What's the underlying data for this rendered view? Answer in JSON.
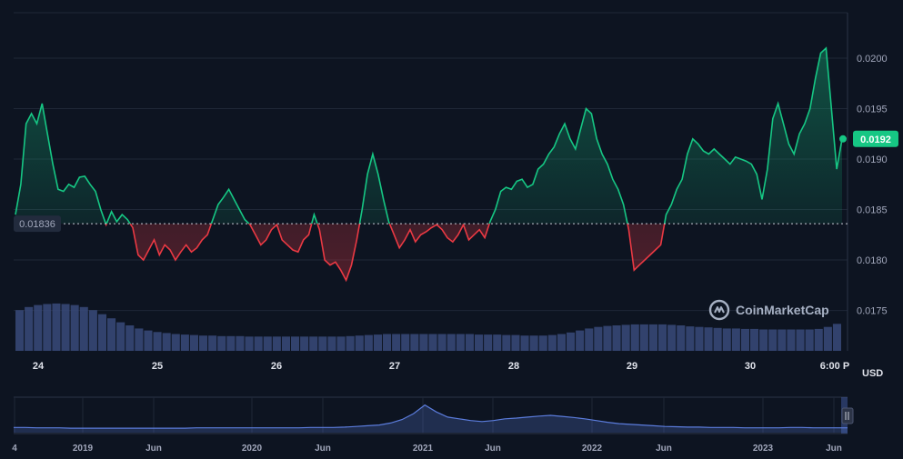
{
  "chart_data": {
    "type": "line",
    "title": "",
    "xlabel": "",
    "ylabel": "",
    "y_unit": "USD",
    "ylim": [
      0.0171,
      0.02045
    ],
    "y_ticks": [
      0.0175,
      0.018,
      0.0185,
      0.019,
      0.0195,
      0.02
    ],
    "y_tick_labels": [
      "0.0175",
      "0.0180",
      "0.0185",
      "0.0190",
      "0.0195",
      "0.0200"
    ],
    "x_tick_labels": [
      "24",
      "25",
      "26",
      "27",
      "28",
      "29",
      "30",
      "6:00 P"
    ],
    "baseline_value": 0.01836,
    "baseline_label": "0.01836",
    "current_value": 0.0192,
    "current_label": "0.0192",
    "colors": {
      "up": "#16c784",
      "down": "#ea3943",
      "background": "#0d1421",
      "volume": "#3a4a7a",
      "navigator": "#5b7cdc"
    },
    "series": [
      {
        "x_start": "23.75",
        "x_end": "30.85",
        "values": [
          0.01845,
          0.01875,
          0.01935,
          0.01945,
          0.01935,
          0.01955,
          0.01925,
          0.01895,
          0.0187,
          0.01868,
          0.01875,
          0.01872,
          0.01882,
          0.01883,
          0.01875,
          0.01868,
          0.0185,
          0.01835,
          0.01848,
          0.01838,
          0.01845,
          0.0184,
          0.01832,
          0.01805,
          0.018,
          0.0181,
          0.0182,
          0.01805,
          0.01815,
          0.0181,
          0.018,
          0.01808,
          0.01815,
          0.01808,
          0.01812,
          0.0182,
          0.01825,
          0.0184,
          0.01855,
          0.01862,
          0.0187,
          0.0186,
          0.0185,
          0.0184,
          0.01835,
          0.01825,
          0.01815,
          0.0182,
          0.0183,
          0.01835,
          0.0182,
          0.01815,
          0.0181,
          0.01808,
          0.0182,
          0.01825,
          0.01845,
          0.0183,
          0.018,
          0.01795,
          0.01798,
          0.0179,
          0.0178,
          0.01795,
          0.0182,
          0.0185,
          0.01885,
          0.01905,
          0.01885,
          0.0186,
          0.01838,
          0.01825,
          0.01812,
          0.0182,
          0.0183,
          0.01818,
          0.01825,
          0.01828,
          0.01832,
          0.01835,
          0.0183,
          0.01822,
          0.01818,
          0.01825,
          0.01835,
          0.0182,
          0.01825,
          0.0183,
          0.01822,
          0.01838,
          0.0185,
          0.01868,
          0.01872,
          0.0187,
          0.01878,
          0.0188,
          0.01872,
          0.01875,
          0.0189,
          0.01895,
          0.01905,
          0.01912,
          0.01925,
          0.01935,
          0.0192,
          0.0191,
          0.0193,
          0.0195,
          0.01945,
          0.0192,
          0.01905,
          0.01895,
          0.0188,
          0.0187,
          0.01855,
          0.0183,
          0.0179,
          0.01795,
          0.018,
          0.01805,
          0.0181,
          0.01815,
          0.01845,
          0.01855,
          0.0187,
          0.0188,
          0.01905,
          0.0192,
          0.01915,
          0.01908,
          0.01905,
          0.0191,
          0.01905,
          0.019,
          0.01895,
          0.01902,
          0.019,
          0.01898,
          0.01895,
          0.01885,
          0.0186,
          0.0189,
          0.0194,
          0.01955,
          0.01935,
          0.01915,
          0.01905,
          0.01925,
          0.01935,
          0.0195,
          0.0198,
          0.02005,
          0.0201,
          0.0195,
          0.0189,
          0.0192
        ]
      }
    ],
    "volume": [
      0.8,
      0.86,
      0.9,
      0.92,
      0.93,
      0.92,
      0.9,
      0.86,
      0.8,
      0.72,
      0.64,
      0.56,
      0.5,
      0.44,
      0.4,
      0.37,
      0.35,
      0.33,
      0.32,
      0.31,
      0.3,
      0.3,
      0.29,
      0.29,
      0.29,
      0.28,
      0.28,
      0.28,
      0.28,
      0.28,
      0.28,
      0.28,
      0.28,
      0.28,
      0.28,
      0.28,
      0.29,
      0.3,
      0.31,
      0.32,
      0.33,
      0.33,
      0.33,
      0.33,
      0.33,
      0.33,
      0.33,
      0.33,
      0.33,
      0.33,
      0.32,
      0.32,
      0.32,
      0.31,
      0.31,
      0.3,
      0.3,
      0.3,
      0.31,
      0.33,
      0.36,
      0.4,
      0.44,
      0.47,
      0.49,
      0.5,
      0.51,
      0.52,
      0.52,
      0.52,
      0.52,
      0.51,
      0.5,
      0.48,
      0.47,
      0.46,
      0.45,
      0.44,
      0.44,
      0.43,
      0.43,
      0.42,
      0.42,
      0.42,
      0.42,
      0.42,
      0.42,
      0.43,
      0.47,
      0.53
    ],
    "navigator": {
      "x_tick_labels": [
        "4",
        "2019",
        "Jun",
        "2020",
        "Jun",
        "2021",
        "Jun",
        "2022",
        "Jun",
        "2023",
        "Jun"
      ],
      "values": [
        0.15,
        0.15,
        0.14,
        0.14,
        0.14,
        0.13,
        0.13,
        0.13,
        0.13,
        0.13,
        0.13,
        0.13,
        0.13,
        0.13,
        0.13,
        0.13,
        0.14,
        0.14,
        0.14,
        0.14,
        0.14,
        0.14,
        0.14,
        0.14,
        0.14,
        0.14,
        0.15,
        0.15,
        0.15,
        0.16,
        0.18,
        0.2,
        0.22,
        0.28,
        0.38,
        0.55,
        0.8,
        0.6,
        0.45,
        0.4,
        0.35,
        0.32,
        0.35,
        0.4,
        0.42,
        0.45,
        0.48,
        0.5,
        0.47,
        0.44,
        0.4,
        0.35,
        0.3,
        0.26,
        0.24,
        0.22,
        0.2,
        0.18,
        0.17,
        0.16,
        0.16,
        0.15,
        0.15,
        0.15,
        0.14,
        0.14,
        0.14,
        0.14,
        0.15,
        0.15,
        0.14,
        0.14,
        0.14,
        0.14
      ]
    }
  },
  "brand": {
    "name": "CoinMarketCap",
    "logo_icon": "coinmarketcap-logo-icon"
  },
  "navigator_handle": {
    "icon": "drag-handle-icon"
  }
}
